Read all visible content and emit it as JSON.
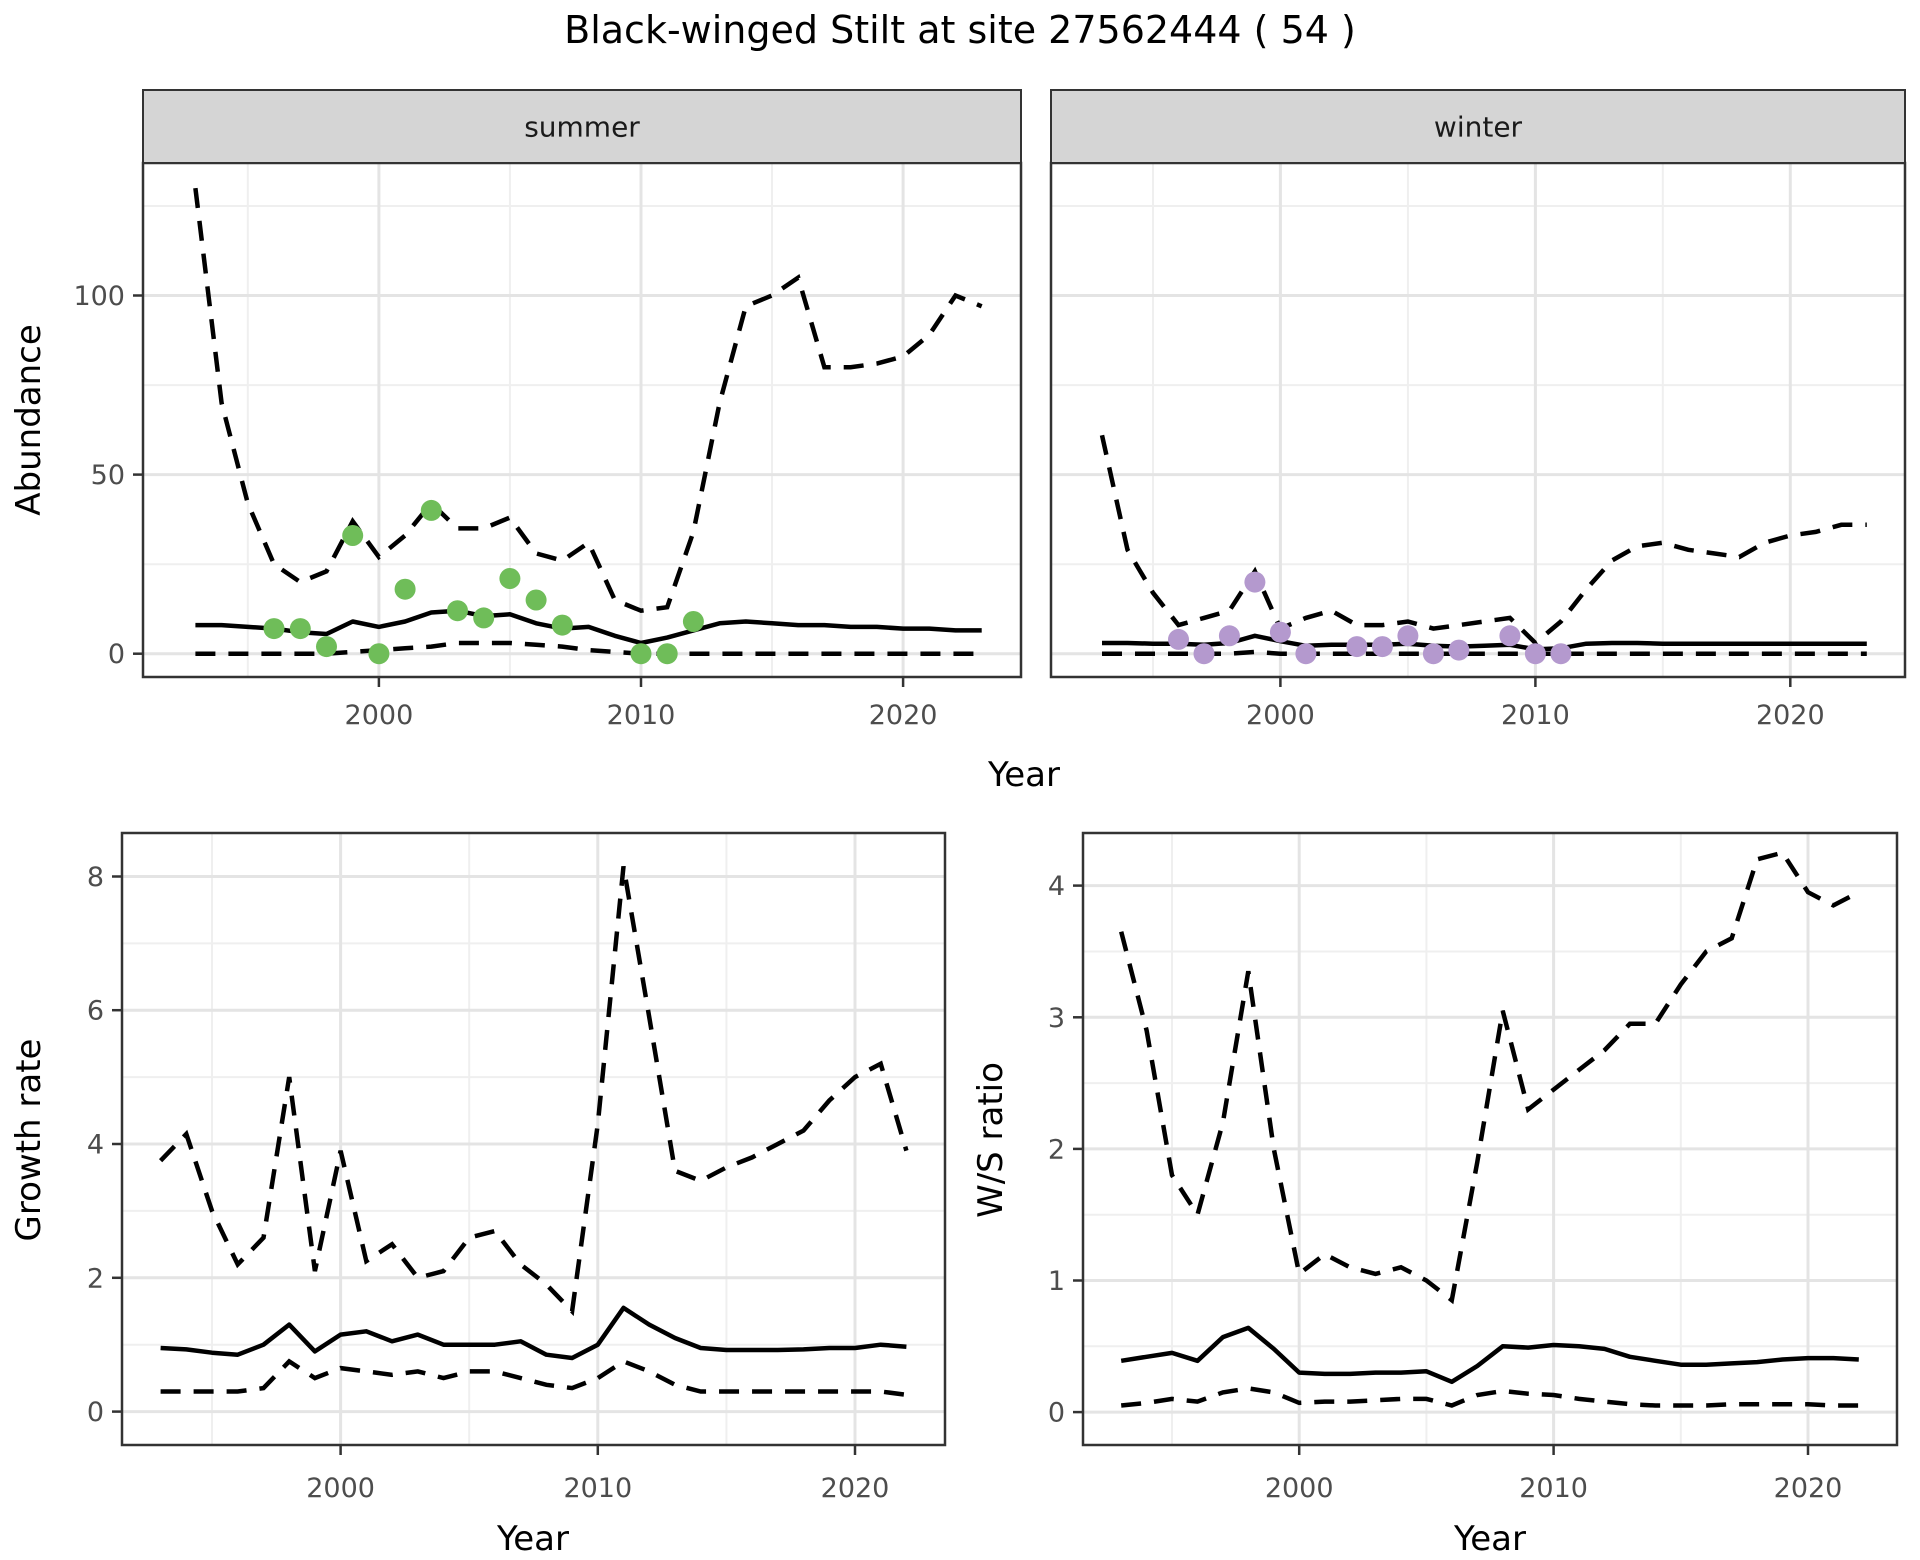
{
  "title": "Black-winged Stilt at site 27562444 ( 54 )",
  "axes": {
    "x_label": "Year",
    "abundance_label": "Abundance",
    "growth_label": "Growth rate",
    "ws_label": "W/S ratio"
  },
  "colors": {
    "summer_point": "#6fbd59",
    "winter_point": "#b499ce",
    "line": "#000000",
    "strip_background": "#d5d5d5",
    "panel_border": "#333333",
    "grid_major": "#e4e4e4",
    "grid_minor": "#efefef",
    "tick_text": "#4d4d4d"
  },
  "chart_data": [
    {
      "id": "summer",
      "type": "line+scatter",
      "facet_label": "summer",
      "ylabel": "Abundance",
      "xlabel": "Year",
      "xlim": [
        1991,
        2024.5
      ],
      "ylim": [
        -6.5,
        137
      ],
      "x_ticks": [
        2000,
        2010,
        2020
      ],
      "x_minor": [
        1995,
        2005,
        2015
      ],
      "y_ticks": [
        0,
        50,
        100
      ],
      "y_minor": [
        25,
        75,
        125
      ],
      "point_color": "#6fbd59",
      "series": {
        "years": [
          1993,
          1994,
          1995,
          1996,
          1997,
          1998,
          1999,
          2000,
          2001,
          2002,
          2003,
          2004,
          2005,
          2006,
          2007,
          2008,
          2009,
          2010,
          2011,
          2012,
          2013,
          2014,
          2015,
          2016,
          2017,
          2018,
          2019,
          2020,
          2021,
          2022,
          2023
        ],
        "median": [
          8,
          8,
          7.5,
          7,
          6,
          5.5,
          9,
          7.5,
          9,
          11.5,
          12,
          10.5,
          11,
          8.5,
          7,
          7.5,
          5,
          3,
          4.5,
          6.5,
          8.5,
          9,
          8.5,
          8,
          8,
          7.5,
          7.5,
          7,
          7,
          6.5,
          6.5
        ],
        "upper": [
          130,
          70,
          42,
          25,
          20,
          23,
          37,
          27,
          33,
          42,
          35,
          35,
          38,
          28,
          26,
          31,
          15,
          12,
          13,
          34,
          70,
          97,
          100,
          105,
          80,
          80,
          81,
          83,
          89,
          100,
          97
        ],
        "lower": [
          0,
          0,
          0,
          0,
          0,
          0,
          0.5,
          1,
          1.5,
          2,
          3,
          3,
          3,
          2.5,
          2,
          1,
          0.5,
          0,
          0,
          0,
          0,
          0,
          0,
          0,
          0,
          0,
          0,
          0,
          0,
          0,
          0
        ]
      },
      "observations": {
        "years": [
          1996,
          1997,
          1998,
          1999,
          2000,
          2001,
          2002,
          2003,
          2004,
          2005,
          2006,
          2007,
          2010,
          2011,
          2012
        ],
        "values": [
          7,
          7,
          2,
          33,
          0,
          18,
          40,
          12,
          10,
          21,
          15,
          8,
          0,
          0,
          9
        ]
      }
    },
    {
      "id": "winter",
      "type": "line+scatter",
      "facet_label": "winter",
      "ylabel": "Abundance",
      "xlabel": "Year",
      "xlim": [
        1991,
        2024.5
      ],
      "ylim": [
        -6.5,
        137
      ],
      "x_ticks": [
        2000,
        2010,
        2020
      ],
      "x_minor": [
        1995,
        2005,
        2015
      ],
      "y_ticks": [
        0,
        50,
        100
      ],
      "y_minor": [
        25,
        75,
        125
      ],
      "point_color": "#b499ce",
      "series": {
        "years": [
          1993,
          1994,
          1995,
          1996,
          1997,
          1998,
          1999,
          2000,
          2001,
          2002,
          2003,
          2004,
          2005,
          2006,
          2007,
          2008,
          2009,
          2010,
          2011,
          2012,
          2013,
          2014,
          2015,
          2016,
          2017,
          2018,
          2019,
          2020,
          2021,
          2022,
          2023
        ],
        "median": [
          3,
          3,
          2.8,
          2.8,
          2.5,
          3,
          5,
          3.5,
          2.2,
          2.5,
          2.5,
          2.5,
          2.8,
          2.2,
          2,
          2.2,
          2.5,
          1.2,
          1.5,
          2.8,
          3,
          3,
          2.8,
          2.8,
          2.8,
          2.8,
          2.8,
          2.8,
          2.8,
          2.8,
          2.8
        ],
        "upper": [
          61,
          29,
          17,
          8,
          10,
          12,
          23,
          7,
          10,
          12,
          8,
          8,
          9,
          7,
          8,
          9,
          10,
          3,
          9,
          18,
          26,
          30,
          31,
          29,
          28,
          27,
          31,
          33,
          34,
          36,
          36
        ],
        "lower": [
          0,
          0,
          0,
          0,
          0,
          0,
          0.5,
          0,
          0,
          0,
          0,
          0,
          0,
          0,
          0,
          0,
          0,
          0,
          0,
          0,
          0,
          0,
          0,
          0,
          0,
          0,
          0,
          0,
          0,
          0,
          0
        ]
      },
      "observations": {
        "years": [
          1996,
          1997,
          1998,
          1999,
          2000,
          2001,
          2003,
          2004,
          2005,
          2006,
          2007,
          2009,
          2010,
          2011
        ],
        "values": [
          4,
          0,
          5,
          20,
          6,
          0,
          2,
          2,
          5,
          0,
          1,
          5,
          0,
          0
        ]
      }
    },
    {
      "id": "growth",
      "type": "line",
      "facet_label": null,
      "ylabel": "Growth rate",
      "xlabel": "Year",
      "xlim": [
        1991.5,
        2023.5
      ],
      "ylim": [
        -0.5,
        8.65
      ],
      "x_ticks": [
        2000,
        2010,
        2020
      ],
      "x_minor": [
        1995,
        2005,
        2015
      ],
      "y_ticks": [
        0,
        2,
        4,
        6,
        8
      ],
      "y_minor": [
        1,
        3,
        5,
        7
      ],
      "series": {
        "years": [
          1993,
          1994,
          1995,
          1996,
          1997,
          1998,
          1999,
          2000,
          2001,
          2002,
          2003,
          2004,
          2005,
          2006,
          2007,
          2008,
          2009,
          2010,
          2011,
          2012,
          2013,
          2014,
          2015,
          2016,
          2017,
          2018,
          2019,
          2020,
          2021,
          2022
        ],
        "median": [
          0.95,
          0.93,
          0.88,
          0.85,
          1.0,
          1.3,
          0.9,
          1.15,
          1.2,
          1.05,
          1.15,
          1.0,
          1.0,
          1.0,
          1.05,
          0.85,
          0.8,
          1.0,
          1.55,
          1.3,
          1.1,
          0.95,
          0.92,
          0.92,
          0.92,
          0.93,
          0.95,
          0.95,
          1.0,
          0.97
        ],
        "upper": [
          3.75,
          4.15,
          3.0,
          2.2,
          2.6,
          5.0,
          2.1,
          3.9,
          2.25,
          2.5,
          2.0,
          2.1,
          2.6,
          2.7,
          2.2,
          1.9,
          1.5,
          4.3,
          8.15,
          5.9,
          3.6,
          3.45,
          3.65,
          3.8,
          4.0,
          4.2,
          4.65,
          5.0,
          5.2,
          3.9
        ],
        "lower": [
          0.3,
          0.3,
          0.3,
          0.3,
          0.35,
          0.75,
          0.5,
          0.65,
          0.6,
          0.55,
          0.6,
          0.5,
          0.6,
          0.6,
          0.5,
          0.4,
          0.35,
          0.5,
          0.75,
          0.6,
          0.4,
          0.3,
          0.3,
          0.3,
          0.3,
          0.3,
          0.3,
          0.3,
          0.3,
          0.25
        ]
      }
    },
    {
      "id": "ws",
      "type": "line",
      "facet_label": null,
      "ylabel": "W/S ratio",
      "xlabel": "Year",
      "xlim": [
        1991.5,
        2023.5
      ],
      "ylim": [
        -0.25,
        4.4
      ],
      "x_ticks": [
        2000,
        2010,
        2020
      ],
      "x_minor": [
        1995,
        2005,
        2015
      ],
      "y_ticks": [
        0,
        1,
        2,
        3,
        4
      ],
      "y_minor": [
        0.5,
        1.5,
        2.5,
        3.5
      ],
      "series": {
        "years": [
          1993,
          1994,
          1995,
          1996,
          1997,
          1998,
          1999,
          2000,
          2001,
          2002,
          2003,
          2004,
          2005,
          2006,
          2007,
          2008,
          2009,
          2010,
          2011,
          2012,
          2013,
          2014,
          2015,
          2016,
          2017,
          2018,
          2019,
          2020,
          2021,
          2022
        ],
        "median": [
          0.39,
          0.42,
          0.45,
          0.39,
          0.57,
          0.64,
          0.48,
          0.3,
          0.29,
          0.29,
          0.3,
          0.3,
          0.31,
          0.23,
          0.35,
          0.5,
          0.49,
          0.51,
          0.5,
          0.48,
          0.42,
          0.39,
          0.36,
          0.36,
          0.37,
          0.38,
          0.4,
          0.41,
          0.41,
          0.4
        ],
        "upper": [
          3.65,
          2.9,
          1.8,
          1.5,
          2.2,
          3.35,
          2.0,
          1.05,
          1.2,
          1.1,
          1.05,
          1.1,
          1.0,
          0.85,
          1.9,
          3.05,
          2.3,
          2.45,
          2.6,
          2.75,
          2.95,
          2.95,
          3.25,
          3.5,
          3.6,
          4.2,
          4.25,
          3.95,
          3.85,
          3.95
        ],
        "lower": [
          0.05,
          0.07,
          0.1,
          0.08,
          0.15,
          0.18,
          0.15,
          0.07,
          0.08,
          0.08,
          0.09,
          0.1,
          0.1,
          0.05,
          0.13,
          0.16,
          0.14,
          0.13,
          0.1,
          0.08,
          0.06,
          0.05,
          0.05,
          0.05,
          0.06,
          0.06,
          0.06,
          0.06,
          0.05,
          0.05
        ]
      }
    }
  ]
}
